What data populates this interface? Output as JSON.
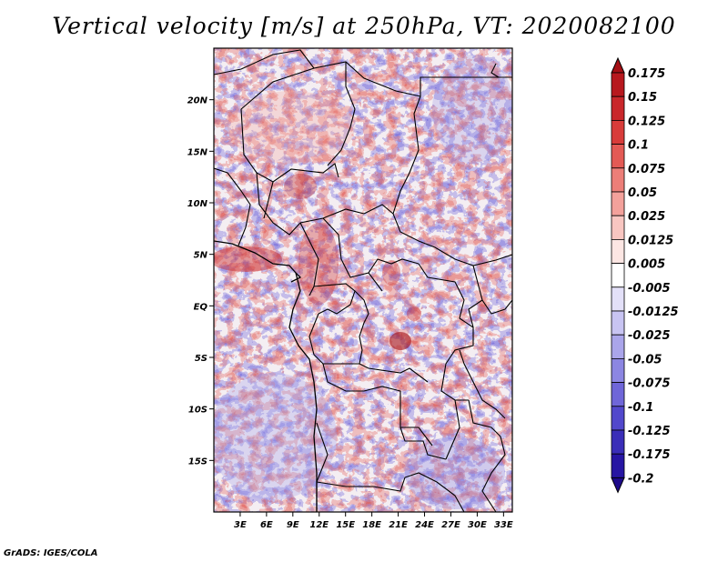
{
  "title": "Vertical velocity [m/s] at 250hPa, VT: 2020082100",
  "credit": "GrADS: IGES/COLA",
  "map": {
    "lon_range": [
      0,
      34
    ],
    "lat_range": [
      -20,
      25
    ],
    "lon_ticks": [
      "3E",
      "6E",
      "9E",
      "12E",
      "15E",
      "18E",
      "21E",
      "24E",
      "27E",
      "30E",
      "33E"
    ],
    "lon_tick_values": [
      3,
      6,
      9,
      12,
      15,
      18,
      21,
      24,
      27,
      30,
      33
    ],
    "lat_ticks": [
      "20N",
      "15N",
      "10N",
      "5N",
      "EQ",
      "5S",
      "10S",
      "15S"
    ],
    "lat_tick_values": [
      20,
      15,
      10,
      5,
      0,
      -5,
      -10,
      -15
    ]
  },
  "colorbar": {
    "levels": [
      "0.175",
      "0.15",
      "0.125",
      "0.1",
      "0.075",
      "0.05",
      "0.025",
      "0.0125",
      "0.005",
      "-0.005",
      "-0.0125",
      "-0.025",
      "-0.05",
      "-0.075",
      "-0.1",
      "-0.125",
      "-0.175",
      "-0.2"
    ],
    "colors": [
      "#a50f15",
      "#b7181e",
      "#c9272b",
      "#d83c3a",
      "#e35a55",
      "#ec7e78",
      "#f3a19b",
      "#f8c6c1",
      "#fce6e3",
      "#ffffff",
      "#e3e0f8",
      "#c8c4f2",
      "#aaa5ea",
      "#8c86e2",
      "#6f66d8",
      "#5248cc",
      "#3a2eb8",
      "#2716a3",
      "#1e0a8a"
    ]
  },
  "colors": {
    "land_boundaries": "#000000",
    "background": "#ffffff"
  }
}
